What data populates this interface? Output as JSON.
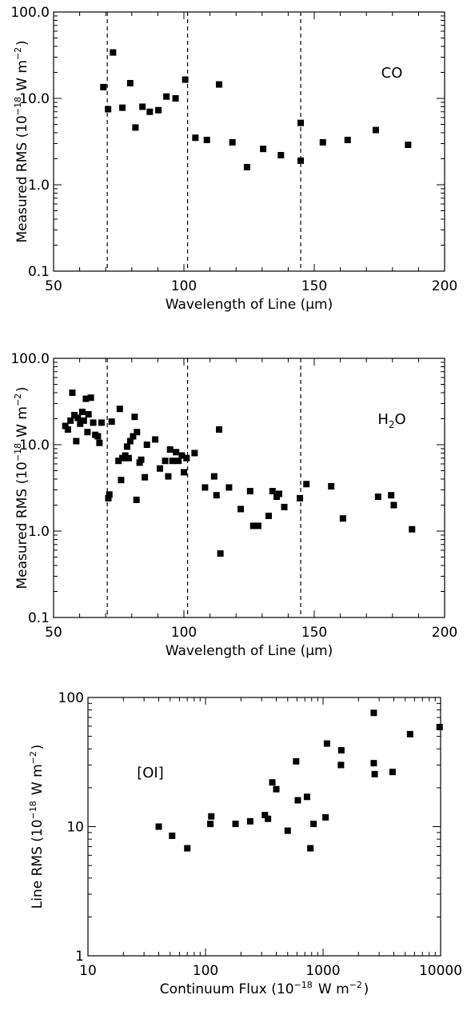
{
  "chart_data": [
    {
      "type": "scatter",
      "title": "",
      "panel_label": "CO",
      "xlabel": "Wavelength of Line (μm)",
      "ylabel": "Measured RMS (10⁻¹⁸ W m⁻²)",
      "x_scale": "linear",
      "y_scale": "log",
      "xlim": [
        50,
        200
      ],
      "ylim": [
        0.1,
        100
      ],
      "x_ticks": [
        50,
        100,
        150,
        200
      ],
      "x_tick_labels": [
        "50",
        "100",
        "150",
        "200"
      ],
      "y_ticks": [
        0.1,
        1,
        10,
        100
      ],
      "y_tick_labels": [
        "0.1",
        "1.0",
        "10.0",
        "100.0"
      ],
      "vlines": [
        70.6,
        101.4,
        144.8
      ],
      "grid": false,
      "x": [
        69.1,
        70.9,
        72.8,
        76.4,
        79.4,
        81.4,
        84.1,
        86.9,
        90.2,
        93.3,
        96.8,
        100.5,
        104.4,
        108.8,
        113.5,
        118.6,
        124.2,
        130.4,
        137.2,
        144.8,
        153.3,
        162.8,
        173.6,
        186.0
      ],
      "y": [
        13.5,
        7.5,
        34.0,
        7.8,
        15.0,
        4.6,
        8.0,
        7.0,
        7.3,
        10.5,
        10.0,
        16.5,
        3.5,
        3.3,
        14.5,
        3.1,
        1.6,
        2.6,
        2.2,
        1.9,
        3.1,
        3.3,
        4.3,
        2.9
      ],
      "x_extra": [
        144.8
      ],
      "y_extra": [
        5.2
      ]
    },
    {
      "type": "scatter",
      "title": "",
      "panel_label": "H₂O",
      "xlabel": "Wavelength of Line (μm)",
      "ylabel": "Measured RMS (10⁻¹⁸ W m⁻²)",
      "x_scale": "linear",
      "y_scale": "log",
      "xlim": [
        50,
        200
      ],
      "ylim": [
        0.1,
        100
      ],
      "x_ticks": [
        50,
        100,
        150,
        200
      ],
      "x_tick_labels": [
        "50",
        "100",
        "150",
        "200"
      ],
      "y_ticks": [
        0.1,
        1,
        10,
        100
      ],
      "y_tick_labels": [
        "0.1",
        "1.0",
        "10.0",
        "100.0"
      ],
      "vlines": [
        70.6,
        101.4,
        144.8
      ],
      "grid": false,
      "x": [
        54.5,
        55.5,
        56.5,
        57.2,
        58.0,
        58.7,
        59.3,
        60.2,
        61.0,
        61.6,
        62.4,
        63.0,
        63.4,
        64.3,
        65.2,
        66.0,
        67.0,
        67.6,
        68.4,
        71.0,
        71.4,
        72.3,
        74.9,
        75.4,
        75.9,
        76.4,
        77.5,
        78.2,
        78.8,
        79.4,
        80.5,
        81.1,
        81.8,
        82.0,
        83.0,
        83.6,
        85.0,
        85.8,
        89.0,
        90.8,
        92.8,
        94.0,
        94.7,
        95.6,
        97.0,
        97.9,
        99.2,
        100.0,
        101.0,
        104.1,
        108.1,
        111.6,
        112.5,
        113.5,
        114.0,
        117.3,
        121.8,
        125.4,
        126.6,
        128.5,
        132.5,
        134.0,
        135.6,
        136.5,
        138.5,
        144.5,
        147.0,
        156.5,
        161.0,
        174.5,
        179.5,
        180.5,
        187.5
      ],
      "y": [
        16.5,
        15.0,
        19.0,
        40.0,
        22.0,
        11.0,
        20.5,
        17.5,
        24.0,
        19.0,
        34.0,
        14.0,
        22.5,
        35.0,
        18.0,
        13.0,
        12.5,
        10.5,
        18.0,
        2.4,
        2.65,
        18.5,
        6.5,
        26.0,
        3.9,
        7.0,
        7.5,
        9.5,
        7.0,
        11.0,
        12.5,
        21.0,
        2.3,
        14.0,
        6.2,
        6.7,
        4.2,
        10.0,
        11.5,
        5.3,
        6.5,
        4.3,
        8.8,
        6.5,
        8.2,
        6.5,
        7.5,
        4.8,
        7.0,
        8.0,
        3.2,
        4.3,
        2.6,
        15.0,
        0.55,
        3.2,
        1.8,
        2.9,
        1.15,
        1.15,
        1.5,
        2.9,
        2.5,
        2.7,
        1.9,
        2.4,
        3.5,
        3.3,
        1.4,
        2.5,
        2.6,
        2.0,
        1.05
      ]
    },
    {
      "type": "scatter",
      "title": "",
      "panel_label": "[OI]",
      "xlabel": "Continuum Flux (10⁻¹⁸ W m⁻²)",
      "ylabel": "Line RMS (10⁻¹⁸ W m⁻²)",
      "x_scale": "log",
      "y_scale": "log",
      "xlim": [
        10,
        10000
      ],
      "ylim": [
        1,
        100
      ],
      "x_ticks": [
        10,
        100,
        1000,
        10000
      ],
      "x_tick_labels": [
        "10",
        "100",
        "1000",
        "10000"
      ],
      "y_ticks": [
        1,
        10,
        100
      ],
      "y_tick_labels": [
        "1",
        "10",
        "100"
      ],
      "vlines": [],
      "grid": false,
      "x": [
        40,
        52,
        70,
        110,
        112,
        180,
        240,
        320,
        340,
        370,
        400,
        500,
        590,
        610,
        730,
        780,
        830,
        1050,
        1080,
        1420,
        1430,
        2700,
        2700,
        2750,
        3900,
        5500,
        9800
      ],
      "y": [
        10,
        8.5,
        6.8,
        10.5,
        12,
        10.5,
        11,
        12.3,
        11.5,
        22,
        19.5,
        9.3,
        32,
        16,
        17,
        6.8,
        10.5,
        11.8,
        44,
        30,
        39,
        76,
        31,
        25.5,
        26.5,
        52,
        59
      ]
    }
  ]
}
